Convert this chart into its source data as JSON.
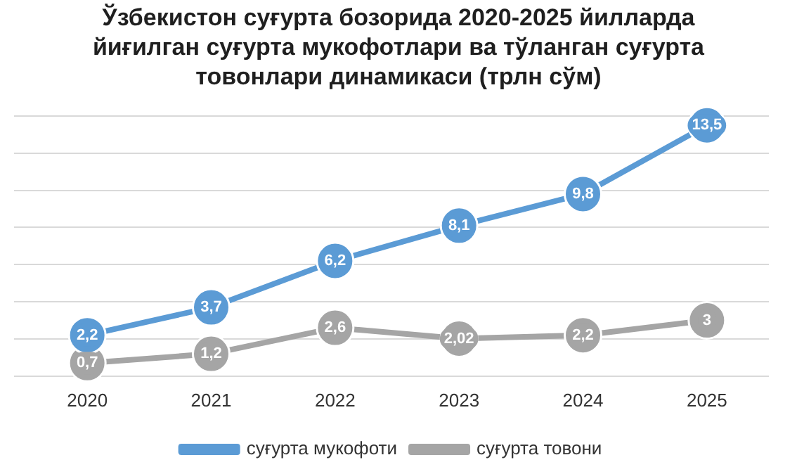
{
  "chart_data": {
    "type": "line",
    "title": "Ўзбекистон суғурта бозорида 2020-2025 йилларда йиғилган суғурта мукофотлари ва тўланган суғурта товонлари динамикаси (трлн сўм)",
    "categories": [
      "2020",
      "2021",
      "2022",
      "2023",
      "2024",
      "2025"
    ],
    "series": [
      {
        "name": "суғурта мукофоти",
        "color": "#5b9bd5",
        "values": [
          2.2,
          3.7,
          6.2,
          8.1,
          9.8,
          13.5
        ],
        "value_labels": [
          "2,2",
          "3,7",
          "6,2",
          "8,1",
          "9,8",
          "13,5"
        ]
      },
      {
        "name": "суғурта товони",
        "color": "#a5a5a5",
        "values": [
          0.7,
          1.2,
          2.6,
          2.02,
          2.2,
          3
        ],
        "value_labels": [
          "0,7",
          "1,2",
          "2,6",
          "2,02",
          "2,2",
          "3"
        ]
      }
    ],
    "data_labels": true,
    "grid": "y",
    "legend": "bottom",
    "marker": "circle",
    "line_style": "solid",
    "tick_labels": "x"
  }
}
